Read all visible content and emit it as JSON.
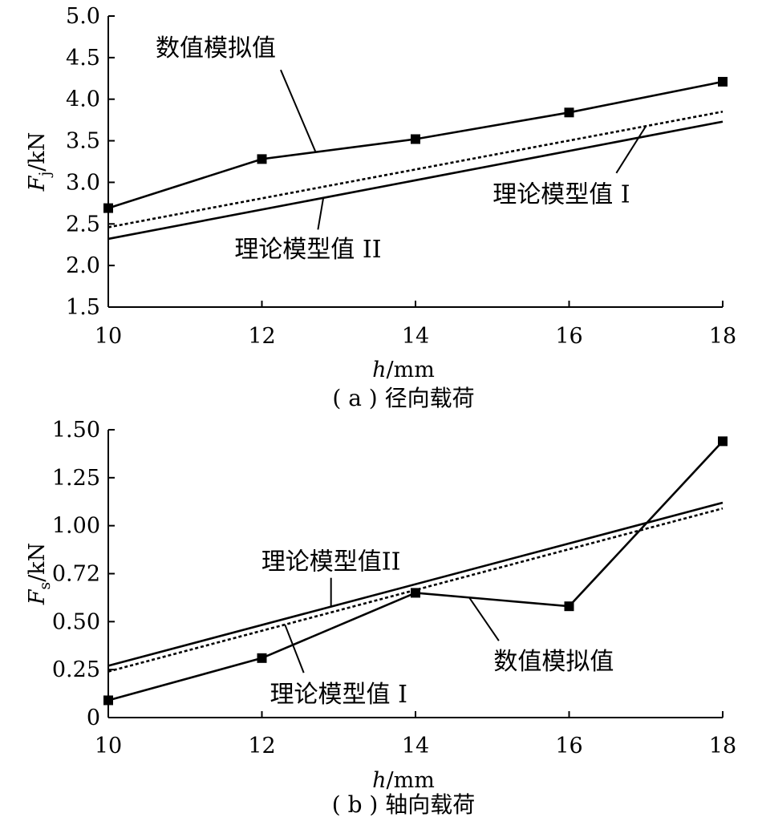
{
  "chart_data": [
    {
      "type": "line",
      "caption": "( a ) 径向载荷",
      "ylabel": {
        "main": "F",
        "sub": "j",
        "unit": "/kN"
      },
      "xlabel": {
        "main": "h",
        "unit": "/mm"
      },
      "xlim": [
        10,
        18
      ],
      "ylim": [
        1.5,
        5.0
      ],
      "xticks": [
        "10",
        "12",
        "14",
        "16",
        "18"
      ],
      "yticks": [
        "1.5",
        "2.0",
        "2.5",
        "3.0",
        "3.5",
        "4.0",
        "4.5",
        "5.0"
      ],
      "series": [
        {
          "name": "数值模拟值",
          "style": "solid-markers",
          "x": [
            10,
            12,
            14,
            16,
            18
          ],
          "y": [
            2.69,
            3.28,
            3.52,
            3.84,
            4.21
          ]
        },
        {
          "name": "理论模型值 I",
          "style": "dotted",
          "x": [
            10,
            18
          ],
          "y": [
            2.46,
            3.85
          ]
        },
        {
          "name": "理论模型值 II",
          "style": "solid",
          "x": [
            10,
            18
          ],
          "y": [
            2.32,
            3.73
          ]
        }
      ],
      "annotations": [
        {
          "text": "数值模拟值",
          "series": 0,
          "at_x": 12.7,
          "tx": 11.4,
          "ty": 4.52
        },
        {
          "text": "理论模型值 I",
          "series": 1,
          "at_x": 17.0,
          "tx": 15.9,
          "ty": 2.76
        },
        {
          "text": "理论模型值 II",
          "series": 2,
          "at_x": 12.8,
          "tx": 12.6,
          "ty": 2.1
        }
      ]
    },
    {
      "type": "line",
      "caption": "( b ) 轴向载荷",
      "ylabel": {
        "main": "F",
        "sub": "s",
        "unit": "/kN"
      },
      "xlabel": {
        "main": "h",
        "unit": "/mm"
      },
      "xlim": [
        10,
        18
      ],
      "ylim": [
        0,
        1.5
      ],
      "xticks": [
        "10",
        "12",
        "14",
        "16",
        "18"
      ],
      "yticks": [
        "0",
        "0.25",
        "0.50",
        "0.72",
        "1.00",
        "1.25",
        "1.50"
      ],
      "series": [
        {
          "name": "数值模拟值",
          "style": "solid-markers",
          "x": [
            10,
            12,
            14,
            16,
            18
          ],
          "y": [
            0.09,
            0.31,
            0.65,
            0.58,
            1.44
          ]
        },
        {
          "name": "理论模型值 I",
          "style": "dotted",
          "x": [
            10,
            18
          ],
          "y": [
            0.24,
            1.09
          ]
        },
        {
          "name": "理论模型值 II",
          "style": "solid",
          "x": [
            10,
            18
          ],
          "y": [
            0.27,
            1.12
          ]
        }
      ],
      "annotations": [
        {
          "text": "理论模型值II",
          "series": 2,
          "at_x": 12.9,
          "tx": 12.9,
          "ty": 0.77
        },
        {
          "text": "数值模拟值",
          "series": 0,
          "at_x": 14.7,
          "tx": 15.8,
          "ty": 0.25
        },
        {
          "text": "理论模型值 I",
          "series": 1,
          "at_x": 12.3,
          "tx": 13.0,
          "ty": 0.08
        }
      ]
    }
  ]
}
